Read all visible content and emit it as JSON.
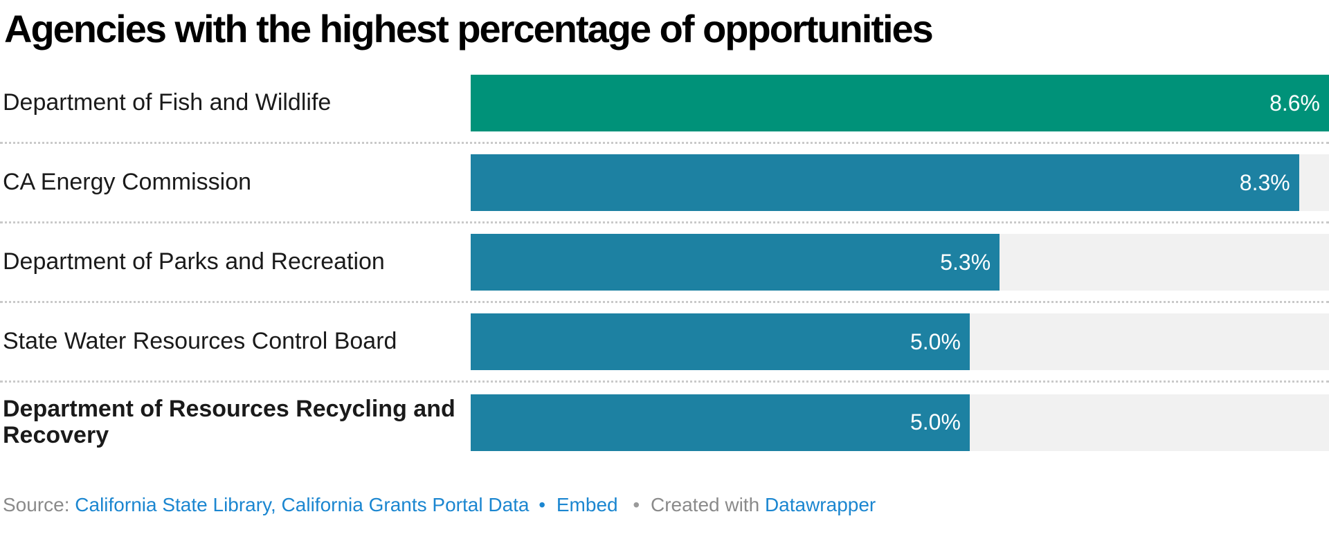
{
  "title": "Agencies with the highest percentage of opportunities",
  "chart_data": {
    "type": "bar",
    "orientation": "horizontal",
    "title": "Agencies with the highest percentage of opportunities",
    "categories": [
      "Department of Fish and Wildlife",
      "CA Energy Commission",
      "Department of Parks and Recreation",
      "State Water Resources Control Board",
      "Department of Resources Recycling and Recovery"
    ],
    "values": [
      8.6,
      8.3,
      5.3,
      5.0,
      5.0
    ],
    "value_labels": [
      "8.6%",
      "8.3%",
      "5.3%",
      "5.0%",
      "5.0%"
    ],
    "unit": "%",
    "xlim": [
      0,
      8.6
    ],
    "grid": false,
    "legend_position": "none",
    "value_label_position": "inside-end",
    "value_label_color": "#ffffff",
    "bold_category_indexes": [
      4
    ],
    "bar_colors": [
      "#009279",
      "#1d81a2",
      "#1d81a2",
      "#1d81a2",
      "#1d81a2"
    ],
    "track_color": "#f1f1f1"
  },
  "footer": {
    "source_prefix": "Source:",
    "source_link": "California State Library, California Grants Portal Data",
    "bullet1": "•",
    "embed_label": "Embed",
    "bullet2": "•",
    "created_with": "Created with",
    "datawrapper_label": "Datawrapper"
  },
  "colors": {
    "title": "#000000",
    "label": "#1a1a1a",
    "highlight_bar": "#009279",
    "default_bar": "#1d81a2",
    "track": "#f1f1f1",
    "separator": "#c9c9c9",
    "footer_text": "#8a8a8a",
    "footer_link": "#1b86d0",
    "background": "#ffffff"
  }
}
